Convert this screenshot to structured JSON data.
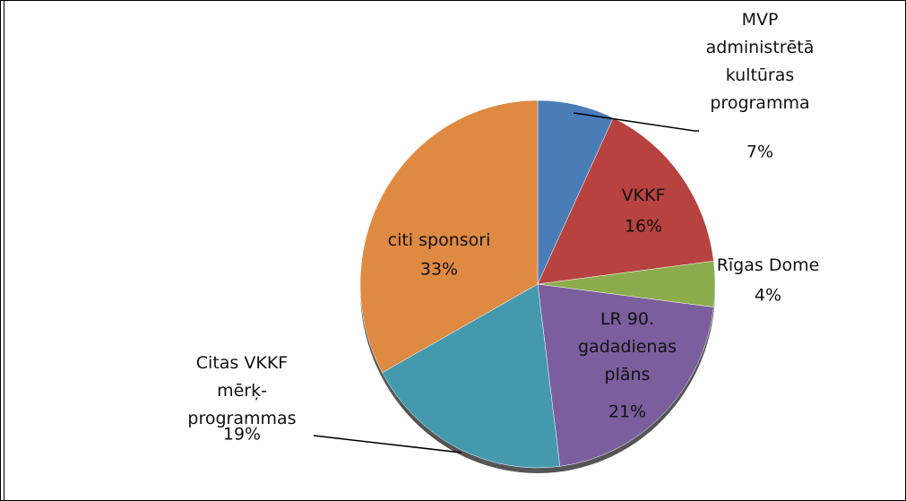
{
  "chart_data": {
    "type": "pie",
    "categories": [
      "MVP\nadministrētā\nkultūras\nprogramma",
      "VKKF",
      "Rīgas Dome",
      "LR 90.\ngadadienas\nplāns",
      "Citas VKKF\nmērķ-\nprogrammas",
      "citi sponsori"
    ],
    "values": [
      7,
      16,
      4,
      21,
      19,
      33
    ],
    "value_labels": [
      "7%",
      "16%",
      "4%",
      "21%",
      "19%",
      "33%"
    ],
    "colors": [
      "#4a7db8",
      "#b7423f",
      "#8bac4b",
      "#7b5e9e",
      "#4499ae",
      "#de8a43"
    ]
  }
}
